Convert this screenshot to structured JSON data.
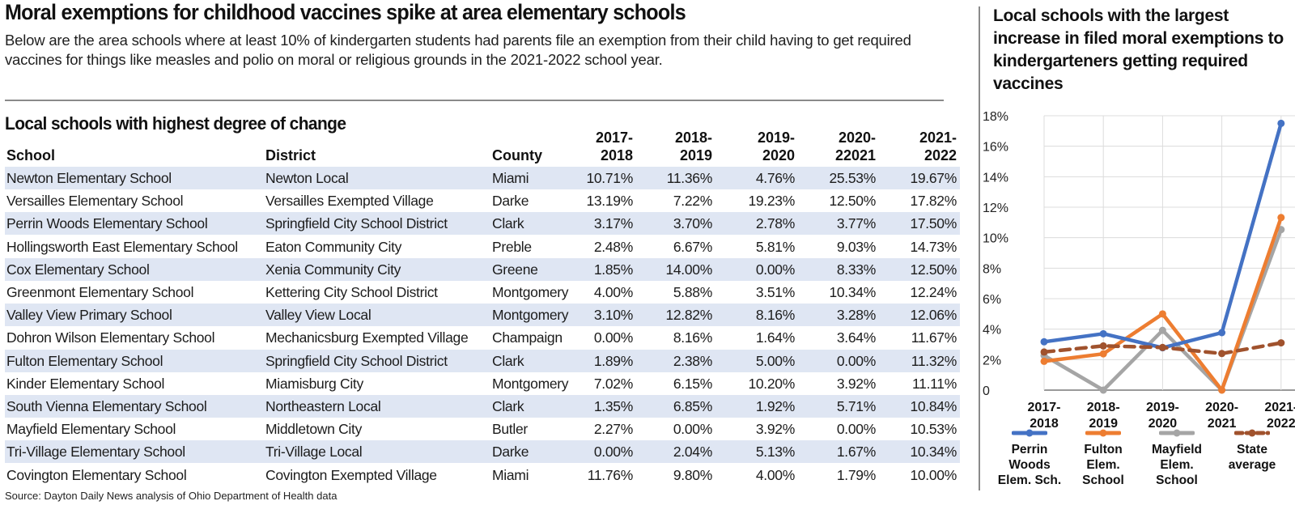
{
  "headline": "Moral exemptions for childhood vaccines spike at area elementary schools",
  "dek": "Below are the area schools where at least 10% of kindergarten students had parents file an exemption from their child having to get required vaccines for things like measles and polio on moral or religious grounds in the 2021-2022 school year.",
  "table": {
    "title": "Local schools with highest degree of change",
    "headers": {
      "school": "School",
      "district": "District",
      "county": "County",
      "years": [
        [
          "2017-",
          "2018"
        ],
        [
          "2018-",
          "2019"
        ],
        [
          "2019-",
          "2020"
        ],
        [
          "2020-",
          "22021"
        ],
        [
          "2021-",
          "2022"
        ]
      ]
    },
    "rows": [
      {
        "school": "Newton Elementary School",
        "district": "Newton Local",
        "county": "Miami",
        "values": [
          "10.71%",
          "11.36%",
          "4.76%",
          "25.53%",
          "19.67%"
        ]
      },
      {
        "school": "Versailles Elementary School",
        "district": "Versailles Exempted Village",
        "county": "Darke",
        "values": [
          "13.19%",
          "7.22%",
          "19.23%",
          "12.50%",
          "17.82%"
        ]
      },
      {
        "school": "Perrin Woods Elementary School",
        "district": "Springfield City School District",
        "county": "Clark",
        "values": [
          "3.17%",
          "3.70%",
          "2.78%",
          "3.77%",
          "17.50%"
        ]
      },
      {
        "school": "Hollingsworth East Elementary School",
        "district": "Eaton Community City",
        "county": "Preble",
        "values": [
          "2.48%",
          "6.67%",
          "5.81%",
          "9.03%",
          "14.73%"
        ]
      },
      {
        "school": "Cox Elementary School",
        "district": "Xenia Community City",
        "county": "Greene",
        "values": [
          "1.85%",
          "14.00%",
          "0.00%",
          "8.33%",
          "12.50%"
        ]
      },
      {
        "school": "Greenmont Elementary School",
        "district": "Kettering City School District",
        "county": "Montgomery",
        "values": [
          "4.00%",
          "5.88%",
          "3.51%",
          "10.34%",
          "12.24%"
        ]
      },
      {
        "school": "Valley View Primary School",
        "district": "Valley View Local",
        "county": "Montgomery",
        "values": [
          "3.10%",
          "12.82%",
          "8.16%",
          "3.28%",
          "12.06%"
        ]
      },
      {
        "school": "Dohron Wilson Elementary School",
        "district": "Mechanicsburg Exempted Village",
        "county": "Champaign",
        "values": [
          "0.00%",
          "8.16%",
          "1.64%",
          "3.64%",
          "11.67%"
        ]
      },
      {
        "school": "Fulton Elementary School",
        "district": "Springfield City School District",
        "county": "Clark",
        "values": [
          "1.89%",
          "2.38%",
          "5.00%",
          "0.00%",
          "11.32%"
        ]
      },
      {
        "school": "Kinder Elementary School",
        "district": "Miamisburg City",
        "county": "Montgomery",
        "values": [
          "7.02%",
          "6.15%",
          "10.20%",
          "3.92%",
          "11.11%"
        ]
      },
      {
        "school": "South Vienna Elementary School",
        "district": "Northeastern Local",
        "county": "Clark",
        "values": [
          "1.35%",
          "6.85%",
          "1.92%",
          "5.71%",
          "10.84%"
        ]
      },
      {
        "school": "Mayfield Elementary School",
        "district": "Middletown City",
        "county": "Butler",
        "values": [
          "2.27%",
          "0.00%",
          "3.92%",
          "0.00%",
          "10.53%"
        ]
      },
      {
        "school": "Tri-Village Elementary School",
        "district": "Tri-Village Local",
        "county": "Darke",
        "values": [
          "0.00%",
          "2.04%",
          "5.13%",
          "1.67%",
          "10.34%"
        ]
      },
      {
        "school": "Covington Elementary School",
        "district": "Covington Exempted Village",
        "county": "Miami",
        "values": [
          "11.76%",
          "9.80%",
          "4.00%",
          "1.79%",
          "10.00%"
        ]
      }
    ],
    "band_color": "#dfe6f3"
  },
  "source": "Source: Dayton Daily News analysis of Ohio Department of Health data",
  "chart_data": {
    "type": "line",
    "title": "Local schools with the largest increase in filed moral exemptions to kindergarteners getting required vaccines",
    "categories": [
      [
        "2017-",
        "2018"
      ],
      [
        "2018-",
        "2019"
      ],
      [
        "2019-",
        "2020"
      ],
      [
        "2020-",
        "2021"
      ],
      [
        "2021-",
        "2022"
      ]
    ],
    "ylim": [
      0,
      18
    ],
    "yticks": [
      0,
      2,
      4,
      6,
      8,
      10,
      12,
      14,
      16,
      18
    ],
    "ytick_labels": [
      "0",
      "2%",
      "4%",
      "6%",
      "8%",
      "10%",
      "12%",
      "14%",
      "16%",
      "18%"
    ],
    "grid": true,
    "legend_position": "bottom",
    "series": [
      {
        "name": [
          "Perrin",
          "Woods",
          "Elem. Sch."
        ],
        "values": [
          3.17,
          3.7,
          2.78,
          3.77,
          17.5
        ],
        "color": "#4472c4",
        "dashed": false
      },
      {
        "name": [
          "Fulton",
          "Elem.",
          "School"
        ],
        "values": [
          1.89,
          2.38,
          5.0,
          0.0,
          11.32
        ],
        "color": "#ed7d31",
        "dashed": false
      },
      {
        "name": [
          "Mayfield",
          "Elem.",
          "School"
        ],
        "values": [
          2.27,
          0.0,
          3.92,
          0.0,
          10.53
        ],
        "color": "#a5a5a5",
        "dashed": false
      },
      {
        "name": [
          "State",
          "average"
        ],
        "values": [
          2.5,
          2.9,
          2.8,
          2.4,
          3.1
        ],
        "color": "#a0522d",
        "dashed": true
      }
    ]
  }
}
